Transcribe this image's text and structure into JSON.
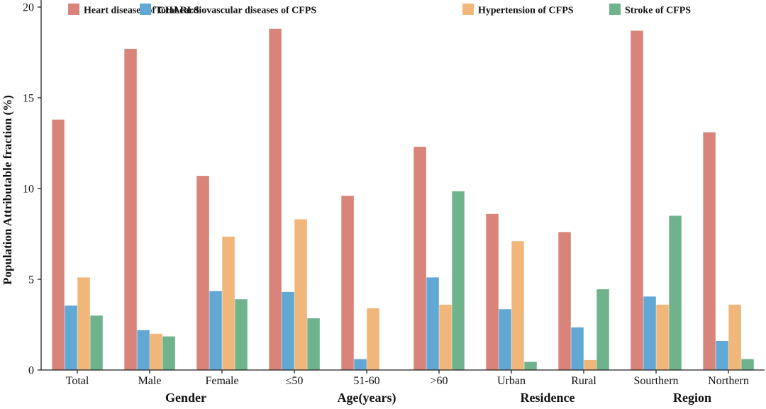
{
  "chart_data": {
    "type": "bar",
    "ylabel": "Population Attributable fraction (%)",
    "ylim": [
      0,
      20
    ],
    "yticks": [
      0,
      5,
      10,
      15,
      20
    ],
    "grid": false,
    "legend_position": "top",
    "categories": [
      "Total",
      "Male",
      "Female",
      "≤50",
      "51-60",
      ">60",
      "Urban",
      "Rural",
      "Sourthern",
      "Northern"
    ],
    "groups": [
      {
        "label": "Gender",
        "categories": [
          "Male",
          "Female"
        ]
      },
      {
        "label": "Age(years)",
        "categories": [
          "≤50",
          "51-60",
          ">60"
        ]
      },
      {
        "label": "Residence",
        "categories": [
          "Urban",
          "Rural"
        ]
      },
      {
        "label": "Region",
        "categories": [
          "Sourthern",
          "Northern"
        ]
      }
    ],
    "series": [
      {
        "name": "Heart diseases of CHARLS",
        "color": "#D9847A",
        "values": [
          13.8,
          17.7,
          10.7,
          18.8,
          9.6,
          12.3,
          8.6,
          7.6,
          18.7,
          13.1
        ]
      },
      {
        "name": "Total cardiovascular diseases of CFPS",
        "color": "#62A8D5",
        "values": [
          3.55,
          2.2,
          4.35,
          4.3,
          0.6,
          5.1,
          3.35,
          2.35,
          4.05,
          1.6
        ]
      },
      {
        "name": "Hypertension of CFPS",
        "color": "#F0B67A",
        "values": [
          5.1,
          2.0,
          7.35,
          8.3,
          3.4,
          3.6,
          7.1,
          0.55,
          3.6,
          3.6
        ]
      },
      {
        "name": "Stroke of CFPS",
        "color": "#6FB38D",
        "values": [
          3.0,
          1.85,
          3.9,
          2.85,
          null,
          9.85,
          0.45,
          4.45,
          8.5,
          0.6
        ]
      }
    ]
  }
}
